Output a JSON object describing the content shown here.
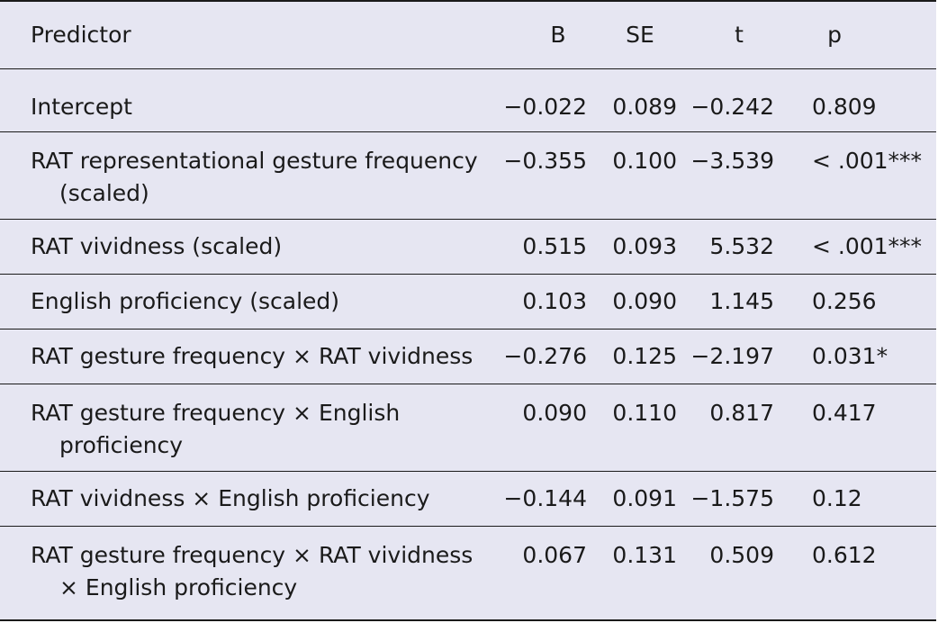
{
  "table": {
    "headers": {
      "predictor": "Predictor",
      "b": "B",
      "se": "SE",
      "t": "t",
      "p": "p"
    },
    "rows": [
      {
        "predictor": "Intercept",
        "b": "−0.022",
        "se": "0.089",
        "t": "−0.242",
        "p": "0.809"
      },
      {
        "predictor": "RAT representational gesture frequency (scaled)",
        "b": "−0.355",
        "se": "0.100",
        "t": "−3.539",
        "p": "< .001***"
      },
      {
        "predictor": "RAT vividness (scaled)",
        "b": "0.515",
        "se": "0.093",
        "t": "5.532",
        "p": "< .001***"
      },
      {
        "predictor": "English proficiency (scaled)",
        "b": "0.103",
        "se": "0.090",
        "t": "1.145",
        "p": "0.256"
      },
      {
        "predictor": "RAT gesture frequency × RAT vividness",
        "b": "−0.276",
        "se": "0.125",
        "t": "−2.197",
        "p": "0.031*"
      },
      {
        "predictor": "RAT gesture frequency × English proficiency",
        "b": "0.090",
        "se": "0.110",
        "t": "0.817",
        "p": "0.417"
      },
      {
        "predictor": "RAT vividness × English proficiency",
        "b": "−0.144",
        "se": "0.091",
        "t": "−1.575",
        "p": "0.12"
      },
      {
        "predictor": "RAT gesture frequency × RAT vividness × English proficiency",
        "b": "0.067",
        "se": "0.131",
        "t": "0.509",
        "p": "0.612"
      }
    ]
  }
}
